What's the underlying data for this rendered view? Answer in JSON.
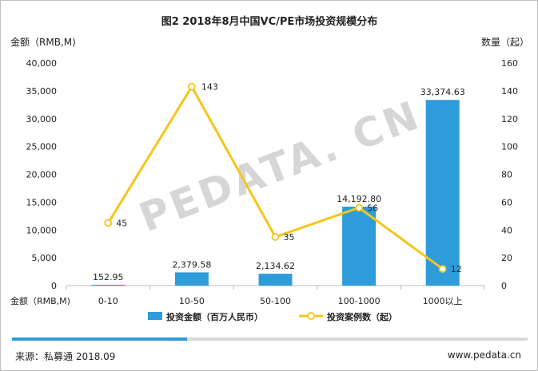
{
  "chart_data": {
    "type": "bar+line",
    "title": "图2 2018年8月中国VC/PE市场投资规模分布",
    "categories": [
      "0-10",
      "10-50",
      "50-100",
      "100-1000",
      "1000以上"
    ],
    "bar_series": {
      "name": "投资金额（百万人民币）",
      "values": [
        152.95,
        2379.58,
        2134.62,
        14192.8,
        33374.63
      ],
      "labels": [
        "152.95",
        "2,379.58",
        "2,134.62",
        "14,192.80",
        "33,374.63"
      ],
      "color": "#2e9cdb"
    },
    "line_series": {
      "name": "投资案例数（起）",
      "values": [
        45,
        143,
        35,
        56,
        12
      ],
      "labels": [
        "45",
        "143",
        "35",
        "56",
        "12"
      ],
      "color": "#f5c518"
    },
    "y_left": {
      "label": "金额（RMB,M)",
      "range": [
        0,
        40000
      ],
      "ticks": [
        "0",
        "5,000",
        "10,000",
        "15,000",
        "20,000",
        "25,000",
        "30,000",
        "35,000",
        "40,000"
      ]
    },
    "y_right": {
      "label": "数量（起）",
      "range": [
        0,
        160
      ],
      "ticks": [
        "0",
        "20",
        "40",
        "60",
        "80",
        "100",
        "120",
        "140",
        "160"
      ]
    },
    "x_label": "金额（RMB,M)",
    "watermark": "PEDATA. CN",
    "progress": 0.34
  },
  "footer": {
    "source": "来源：私募通 2018.09",
    "url": "www.pedata.cn"
  },
  "colors": {
    "bar": "#2e9cdb",
    "line": "#f5c518",
    "axis_text": "#222222",
    "progress": "#2e9cdb"
  }
}
